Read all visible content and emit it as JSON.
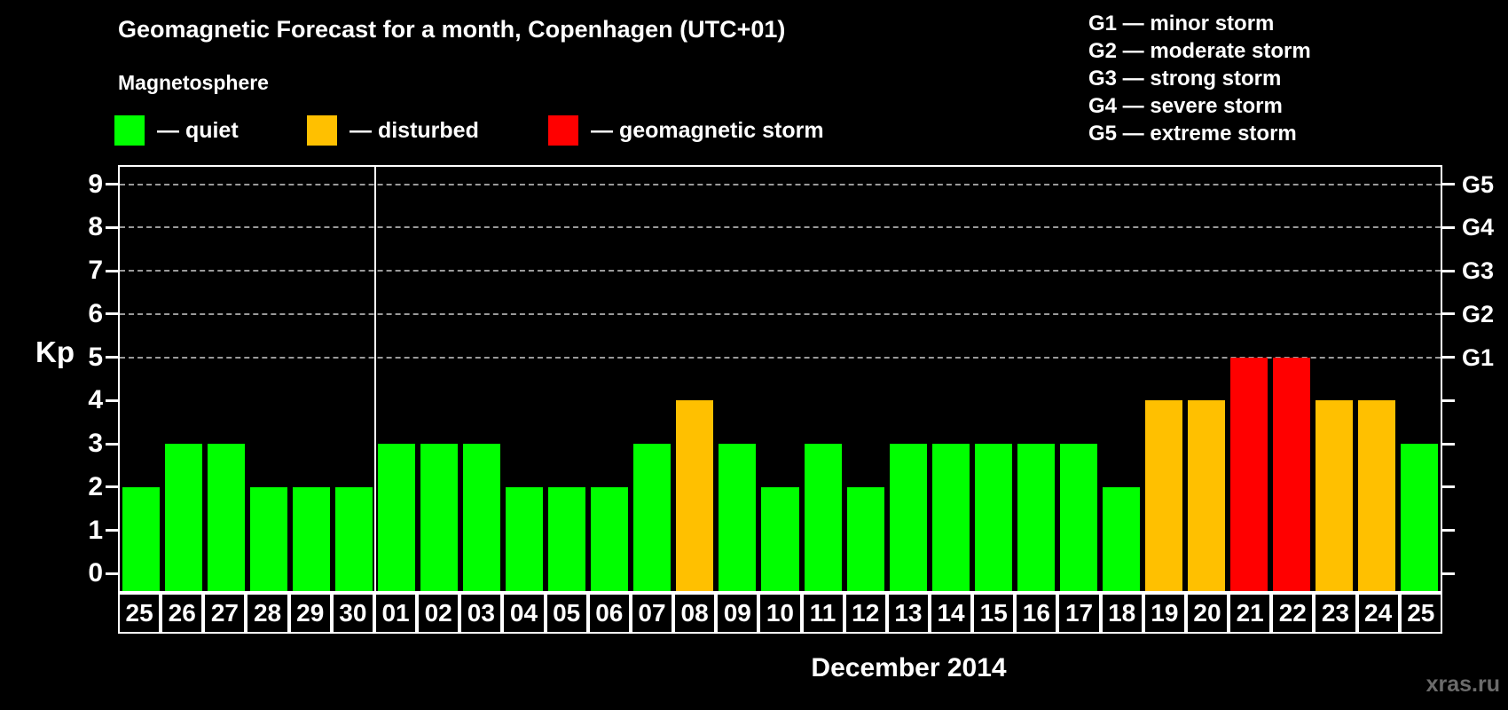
{
  "title": "Geomagnetic Forecast for a month, Copenhagen (UTC+01)",
  "watermark": "xras.ru",
  "storm_scale_legend": {
    "items": [
      {
        "code": "G1",
        "desc": "minor storm"
      },
      {
        "code": "G2",
        "desc": "moderate storm"
      },
      {
        "code": "G3",
        "desc": "strong storm"
      },
      {
        "code": "G4",
        "desc": "severe storm"
      },
      {
        "code": "G5",
        "desc": "extreme storm"
      }
    ]
  },
  "magnetosphere_legend": {
    "title": "Magnetosphere",
    "items": [
      {
        "key": "quiet",
        "label": "quiet",
        "color": "#00ff00"
      },
      {
        "key": "disturbed",
        "label": "disturbed",
        "color": "#ffc000"
      },
      {
        "key": "storm",
        "label": "geomagnetic storm",
        "color": "#ff0000"
      }
    ]
  },
  "chart_data": {
    "type": "bar",
    "title": "Geomagnetic Forecast for a month, Copenhagen (UTC+01)",
    "xlabel": "December 2014",
    "ylabel": "Kp",
    "ylim": [
      0,
      9
    ],
    "yticks": [
      0,
      1,
      2,
      3,
      4,
      5,
      6,
      7,
      8,
      9
    ],
    "gridlines_at_kp": [
      5,
      6,
      7,
      8,
      9
    ],
    "grid": "dashed horizontal at storm levels only",
    "right_axis_labels": [
      {
        "kp": 5,
        "label": "G1"
      },
      {
        "kp": 6,
        "label": "G2"
      },
      {
        "kp": 7,
        "label": "G3"
      },
      {
        "kp": 8,
        "label": "G4"
      },
      {
        "kp": 9,
        "label": "G5"
      }
    ],
    "month_boundary_index": 6,
    "categories": [
      "25",
      "26",
      "27",
      "28",
      "29",
      "30",
      "01",
      "02",
      "03",
      "04",
      "05",
      "06",
      "07",
      "08",
      "09",
      "10",
      "11",
      "12",
      "13",
      "14",
      "15",
      "16",
      "17",
      "18",
      "19",
      "20",
      "21",
      "22",
      "23",
      "24",
      "25"
    ],
    "values": [
      2,
      3,
      3,
      2,
      2,
      2,
      3,
      3,
      3,
      2,
      2,
      2,
      3,
      4,
      3,
      2,
      3,
      2,
      3,
      3,
      3,
      3,
      3,
      2,
      4,
      4,
      5,
      5,
      4,
      4,
      3
    ],
    "status_thresholds": {
      "disturbed_min_kp": 4,
      "storm_min_kp": 5
    },
    "status_colors": {
      "quiet": "#00ff00",
      "disturbed": "#ffc000",
      "storm": "#ff0000"
    }
  }
}
